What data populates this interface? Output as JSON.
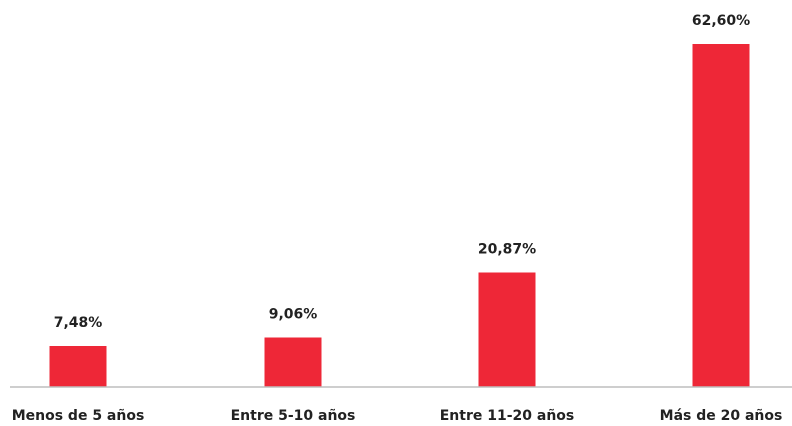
{
  "chart_data": {
    "type": "bar",
    "categories": [
      "Menos de 5 años",
      "Entre 5-10 años",
      "Entre 11-20 años",
      "Más de 20 años"
    ],
    "values": [
      7.48,
      9.06,
      20.87,
      62.6
    ],
    "value_labels": [
      "7,48%",
      "9,06%",
      "20,87%",
      "62,60%"
    ],
    "title": "",
    "xlabel": "",
    "ylabel": "",
    "ylim": [
      0,
      62.6
    ],
    "grid": false,
    "legend": "none",
    "colors": {
      "bar": "#ee2737",
      "axis": "#bdbdbd",
      "text": "#222222"
    }
  }
}
